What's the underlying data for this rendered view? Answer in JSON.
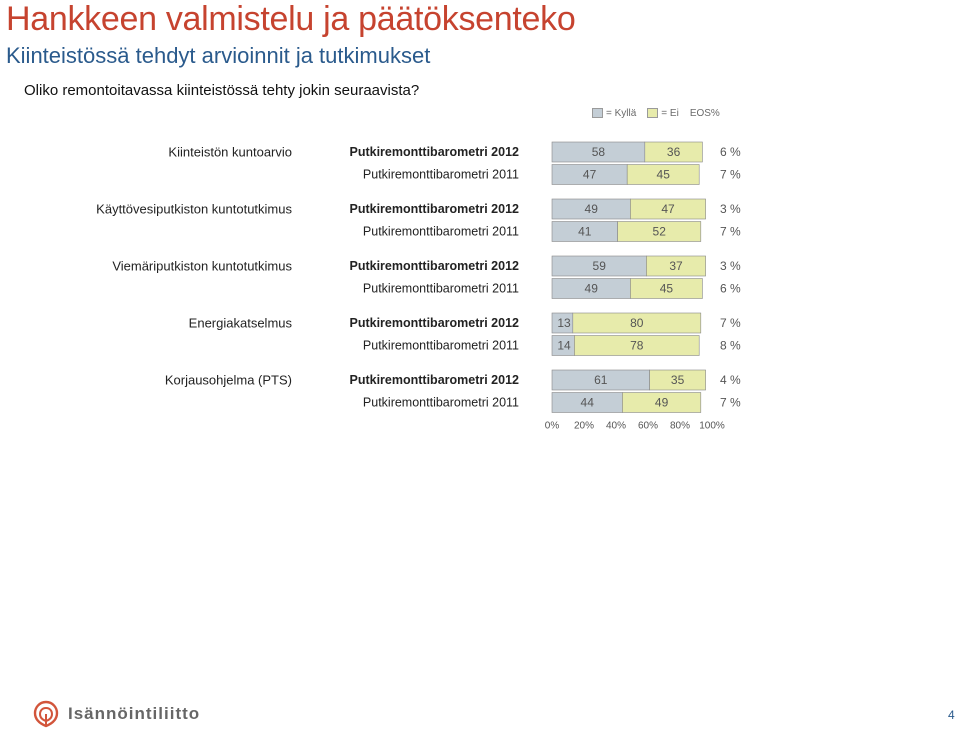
{
  "header": {
    "title": "Hankkeen valmistelu ja päätöksenteko",
    "subtitle": "Kiinteistössä tehdyt arvioinnit ja tutkimukset",
    "question": "Oliko remontoitavassa kiinteistössä tehty jokin seuraavista?"
  },
  "legend": {
    "yes_label": "= Kyllä",
    "no_label": "= Ei",
    "eos_label": "EOS%"
  },
  "colors": {
    "yes": "#c4ced6",
    "no": "#e7ebab",
    "bar_stroke": "#888888",
    "title": "#c6432f",
    "subtitle": "#2a5a8c"
  },
  "chart_data": {
    "type": "bar",
    "orientation": "horizontal",
    "stacked": true,
    "xlim": [
      0,
      100
    ],
    "x_ticks": [
      "0%",
      "20%",
      "40%",
      "60%",
      "80%",
      "100%"
    ],
    "grid": false,
    "legend_position": "top-right",
    "groups": [
      {
        "label": "Kiinteistön kuntoarvio",
        "rows": [
          {
            "source": "Putkiremonttibarometri 2012",
            "bold": true,
            "yes": 58,
            "no": 36,
            "eos": "6 %"
          },
          {
            "source": "Putkiremonttibarometri 2011",
            "bold": false,
            "yes": 47,
            "no": 45,
            "eos": "7 %"
          }
        ]
      },
      {
        "label": "Käyttövesiputkiston kuntotutkimus",
        "rows": [
          {
            "source": "Putkiremonttibarometri 2012",
            "bold": true,
            "yes": 49,
            "no": 47,
            "eos": "3 %"
          },
          {
            "source": "Putkiremonttibarometri 2011",
            "bold": false,
            "yes": 41,
            "no": 52,
            "eos": "7 %"
          }
        ]
      },
      {
        "label": "Viemäriputkiston kuntotutkimus",
        "rows": [
          {
            "source": "Putkiremonttibarometri 2012",
            "bold": true,
            "yes": 59,
            "no": 37,
            "eos": "3 %"
          },
          {
            "source": "Putkiremonttibarometri 2011",
            "bold": false,
            "yes": 49,
            "no": 45,
            "eos": "6 %"
          }
        ]
      },
      {
        "label": "Energiakatselmus",
        "rows": [
          {
            "source": "Putkiremonttibarometri 2012",
            "bold": true,
            "yes": 13,
            "no": 80,
            "eos": "7 %"
          },
          {
            "source": "Putkiremonttibarometri 2011",
            "bold": false,
            "yes": 14,
            "no": 78,
            "eos": "8 %"
          }
        ]
      },
      {
        "label": "Korjausohjelma (PTS)",
        "rows": [
          {
            "source": "Putkiremonttibarometri 2012",
            "bold": true,
            "yes": 61,
            "no": 35,
            "eos": "4 %"
          },
          {
            "source": "Putkiremonttibarometri 2011",
            "bold": false,
            "yes": 44,
            "no": 49,
            "eos": "7 %"
          }
        ]
      }
    ]
  },
  "footer": {
    "logo_text": "Isännöintiliitto",
    "page_number": "4"
  }
}
